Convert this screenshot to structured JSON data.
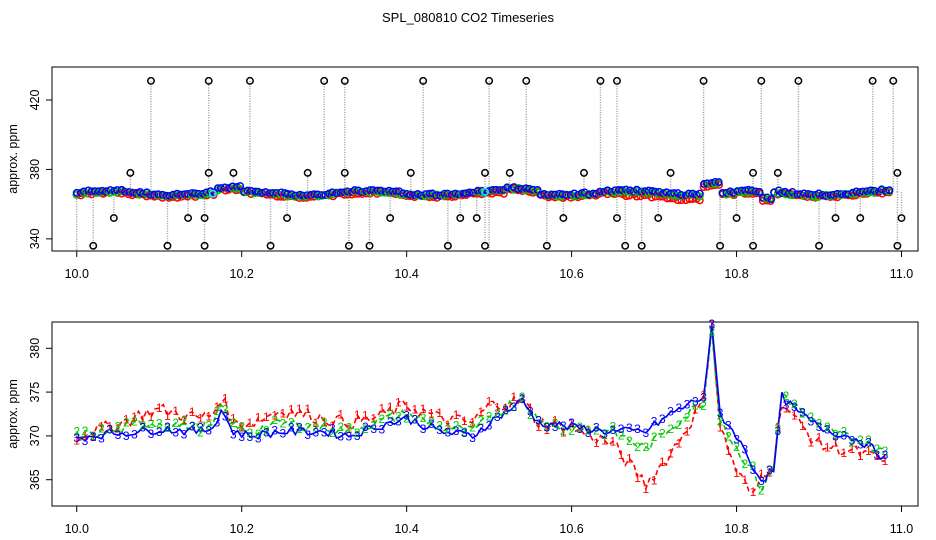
{
  "chart_data": [
    {
      "type": "scatter",
      "title": "SPL_080810  CO2 Timeseries",
      "xlabel": "",
      "ylabel": "approx. ppm",
      "xlim": [
        9.97,
        11.02
      ],
      "ylim": [
        333,
        439
      ],
      "xticks": [
        10.0,
        10.2,
        10.4,
        10.6,
        10.8,
        11.0
      ],
      "xtick_labels": [
        "10.0",
        "10.2",
        "10.4",
        "10.6",
        "10.8",
        "11.0"
      ],
      "yticks": [
        340,
        380,
        420
      ],
      "ytick_labels": [
        "340",
        "380",
        "420"
      ],
      "series": [
        {
          "name": "raw-dotted",
          "color": "#808080",
          "marker": "none"
        },
        {
          "name": "red",
          "color": "#ff0000",
          "marker": "o"
        },
        {
          "name": "green",
          "color": "#00cc00",
          "marker": "o"
        },
        {
          "name": "blue",
          "color": "#0000ff",
          "marker": "o"
        },
        {
          "name": "cyan",
          "color": "#00ffff",
          "marker": "o"
        },
        {
          "name": "black-outliers",
          "color": "#000000",
          "marker": "o"
        }
      ],
      "outliers_high": [
        10.09,
        10.16,
        10.21,
        10.3,
        10.325,
        10.42,
        10.5,
        10.545,
        10.635,
        10.655,
        10.76,
        10.83,
        10.875,
        10.965,
        10.99
      ],
      "outliers_low": [
        10.02,
        10.11,
        10.155,
        10.235,
        10.33,
        10.355,
        10.45,
        10.495,
        10.57,
        10.665,
        10.685,
        10.78,
        10.82,
        10.9,
        10.995
      ],
      "outliers_mid_high": [
        10.065,
        10.16,
        10.19,
        10.28,
        10.325,
        10.405,
        10.495,
        10.525,
        10.615,
        10.72,
        10.82,
        10.85,
        10.995
      ],
      "outliers_mid_low": [
        10.045,
        10.135,
        10.155,
        10.255,
        10.38,
        10.465,
        10.485,
        10.59,
        10.655,
        10.705,
        10.8,
        10.92,
        10.95,
        11.0
      ],
      "cyan_points": [
        [
          10.165,
          366
        ],
        [
          10.495,
          367
        ]
      ]
    },
    {
      "type": "line",
      "title": "",
      "xlabel": "",
      "ylabel": "approx. ppm",
      "xlim": [
        9.97,
        11.02
      ],
      "ylim": [
        362,
        383
      ],
      "xticks": [
        10.0,
        10.2,
        10.4,
        10.6,
        10.8,
        11.0
      ],
      "xtick_labels": [
        "10.0",
        "10.2",
        "10.4",
        "10.6",
        "10.8",
        "11.0"
      ],
      "yticks": [
        365,
        370,
        375,
        380
      ],
      "ytick_labels": [
        "365",
        "370",
        "375",
        "380"
      ],
      "series": [
        {
          "name": "1",
          "marker": "1",
          "color": "#ff0000",
          "linestyle": "dashed"
        },
        {
          "name": "2",
          "marker": "2",
          "color": "#00cc00",
          "linestyle": "dashed"
        },
        {
          "name": "3",
          "marker": "3",
          "color": "#0000ff",
          "linestyle": "solid"
        }
      ],
      "keypoints": {
        "x": [
          10.0,
          10.04,
          10.08,
          10.1,
          10.15,
          10.165,
          10.175,
          10.19,
          10.21,
          10.25,
          10.3,
          10.33,
          10.36,
          10.4,
          10.44,
          10.48,
          10.5,
          10.54,
          10.56,
          10.6,
          10.65,
          10.69,
          10.72,
          10.76,
          10.77,
          10.78,
          10.8,
          10.82,
          10.83,
          10.845,
          10.855,
          10.87,
          10.9,
          10.95,
          10.98
        ],
        "y1": [
          370.0,
          371.0,
          372.5,
          373.0,
          372.0,
          372.5,
          374.5,
          371.5,
          371.5,
          373.0,
          372.0,
          371.5,
          372.0,
          373.5,
          372.0,
          371.5,
          373.5,
          374.0,
          371.5,
          371.0,
          369.0,
          364.5,
          368.0,
          374.0,
          383.0,
          371.0,
          366.0,
          363.0,
          365.5,
          367.0,
          374.0,
          372.0,
          369.0,
          368.0,
          367.0
        ],
        "y2": [
          370.0,
          370.5,
          371.5,
          371.5,
          371.0,
          371.0,
          373.5,
          371.0,
          370.5,
          371.5,
          371.0,
          370.5,
          371.5,
          372.5,
          371.0,
          370.5,
          372.0,
          374.5,
          371.5,
          371.0,
          370.5,
          368.5,
          371.0,
          374.0,
          382.0,
          372.0,
          368.5,
          366.0,
          364.0,
          366.5,
          375.0,
          373.5,
          371.0,
          369.5,
          368.0
        ],
        "y3": [
          369.8,
          370.3,
          370.5,
          370.8,
          370.5,
          371.0,
          373.0,
          370.5,
          370.0,
          370.5,
          370.5,
          370.0,
          371.0,
          372.0,
          370.5,
          370.0,
          371.5,
          374.0,
          371.5,
          371.0,
          370.5,
          370.5,
          372.5,
          374.5,
          382.5,
          372.5,
          370.0,
          366.5,
          365.0,
          366.0,
          374.5,
          373.0,
          371.0,
          369.5,
          367.5
        ]
      }
    }
  ]
}
